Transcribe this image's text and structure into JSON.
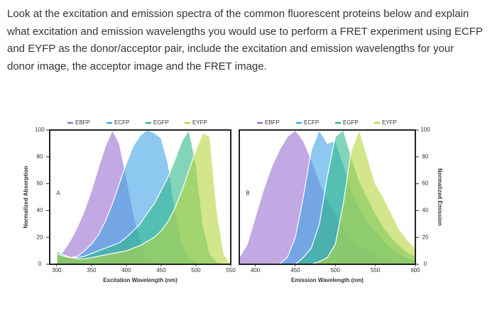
{
  "question": "Look at the excitation and emission spectra of the common fluorescent proteins below and explain what excitation and emission wavelengths you would use to perform a FRET experiment using ECFP and EYFP as the donor/acceptor pair, include the excitation and emission wavelengths for your donor image, the acceptor image and the FRET image.",
  "chart_data": [
    {
      "type": "area",
      "panel_label": "A",
      "xlabel": "Excitation Wavelength (nm)",
      "ylabel": "Normalized Absorption",
      "y_axis_side": "left",
      "xlim": [
        290,
        550
      ],
      "ylim": [
        0,
        100
      ],
      "xticks": [
        300,
        350,
        400,
        450,
        500,
        550
      ],
      "yticks": [
        0,
        20,
        40,
        60,
        80,
        100
      ],
      "x": [
        300,
        310,
        320,
        330,
        340,
        350,
        360,
        370,
        380,
        390,
        400,
        410,
        420,
        430,
        440,
        450,
        460,
        470,
        480,
        490,
        500,
        510,
        520,
        530,
        540,
        550
      ],
      "series": [
        {
          "name": "EBFP",
          "color": "#9b6fd0",
          "values": [
            5,
            10,
            18,
            28,
            40,
            55,
            72,
            88,
            100,
            90,
            65,
            38,
            18,
            6,
            2,
            0,
            0,
            0,
            0,
            0,
            0,
            0,
            0,
            0,
            0,
            0
          ]
        },
        {
          "name": "ECFP",
          "color": "#3fa4e6",
          "values": [
            8,
            6,
            5,
            6,
            10,
            15,
            22,
            32,
            45,
            60,
            75,
            88,
            96,
            100,
            98,
            94,
            75,
            40,
            15,
            5,
            2,
            0,
            0,
            0,
            0,
            0
          ]
        },
        {
          "name": "EGFP",
          "color": "#2fb98a",
          "values": [
            10,
            7,
            5,
            5,
            6,
            8,
            10,
            12,
            14,
            16,
            20,
            25,
            30,
            38,
            45,
            55,
            65,
            78,
            92,
            100,
            75,
            30,
            8,
            2,
            0,
            0
          ]
        },
        {
          "name": "EYFP",
          "color": "#b8d640",
          "values": [
            8,
            6,
            5,
            4,
            4,
            5,
            6,
            7,
            8,
            9,
            10,
            12,
            14,
            17,
            20,
            25,
            32,
            42,
            55,
            70,
            85,
            98,
            95,
            40,
            8,
            0
          ]
        }
      ]
    },
    {
      "type": "area",
      "panel_label": "B",
      "xlabel": "Emission Wavelength (nm)",
      "ylabel": "Normalized Emission",
      "y_axis_side": "right",
      "xlim": [
        380,
        600
      ],
      "ylim": [
        0,
        100
      ],
      "xticks": [
        400,
        450,
        500,
        550,
        600
      ],
      "yticks": [
        0,
        20,
        40,
        60,
        80,
        100
      ],
      "x": [
        380,
        390,
        400,
        410,
        420,
        430,
        440,
        450,
        460,
        470,
        480,
        490,
        500,
        510,
        520,
        530,
        540,
        550,
        560,
        570,
        580,
        590,
        600
      ],
      "series": [
        {
          "name": "EBFP",
          "color": "#9b6fd0",
          "values": [
            5,
            15,
            35,
            55,
            72,
            85,
            95,
            100,
            92,
            78,
            62,
            48,
            38,
            28,
            20,
            14,
            10,
            7,
            5,
            3,
            2,
            1,
            0
          ]
        },
        {
          "name": "ECFP",
          "color": "#3fa4e6",
          "values": [
            0,
            0,
            0,
            0,
            0,
            0,
            5,
            20,
            50,
            85,
            100,
            90,
            92,
            75,
            55,
            42,
            32,
            25,
            18,
            12,
            8,
            5,
            3
          ]
        },
        {
          "name": "EGFP",
          "color": "#2fb98a",
          "values": [
            0,
            0,
            0,
            0,
            0,
            0,
            0,
            0,
            5,
            12,
            30,
            65,
            95,
            100,
            80,
            62,
            50,
            38,
            28,
            20,
            14,
            9,
            6
          ]
        },
        {
          "name": "EYFP",
          "color": "#b8d640",
          "values": [
            0,
            0,
            0,
            0,
            0,
            0,
            0,
            0,
            0,
            0,
            2,
            5,
            15,
            45,
            85,
            100,
            80,
            60,
            50,
            38,
            26,
            18,
            12
          ]
        }
      ]
    }
  ]
}
